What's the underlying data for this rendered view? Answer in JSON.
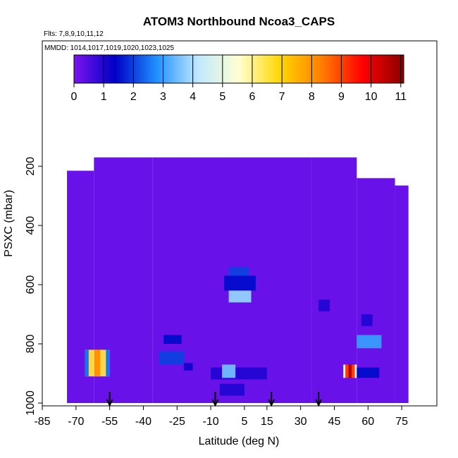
{
  "chart_data": {
    "type": "heatmap",
    "title": "ATOM3 Northbound Ncoa3_CAPS",
    "flights_note": "Flts: 7,8,9,10,11,12",
    "dates_note": "MMDD: 1014,1017,1019,1020,1023,1025",
    "xlabel": "Latitude (deg N)",
    "ylabel": "PSXC (mbar)",
    "xlim": [
      -85,
      85
    ],
    "ylim": [
      1000,
      0
    ],
    "x_ticks": [
      -85,
      -70,
      -55,
      -40,
      -25,
      -10,
      5,
      15,
      30,
      45,
      60,
      75
    ],
    "y_ticks": [
      200,
      400,
      600,
      800,
      1000
    ],
    "colorbar": {
      "ticks": [
        0,
        1,
        2,
        3,
        4,
        5,
        6,
        7,
        8,
        9,
        10,
        11
      ],
      "range": [
        0,
        11.1
      ],
      "colors": [
        "#7a14ee",
        "#0000c8",
        "#1e90ff",
        "#bfe8ff",
        "#ffffd0",
        "#ffd700",
        "#ff7f00",
        "#ff0000",
        "#8b0000"
      ]
    },
    "background_value": 0.2,
    "coverage": [
      {
        "lat": [
          -74,
          -62
        ],
        "p": [
          215,
          1000
        ]
      },
      {
        "lat": [
          -62,
          -36
        ],
        "p": [
          170,
          1000
        ]
      },
      {
        "lat": [
          -36,
          35
        ],
        "p": [
          170,
          1000
        ]
      },
      {
        "lat": [
          35,
          55
        ],
        "p": [
          170,
          1000
        ]
      },
      {
        "lat": [
          55,
          72
        ],
        "p": [
          240,
          1000
        ]
      },
      {
        "lat": [
          72,
          78
        ],
        "p": [
          265,
          1000
        ]
      }
    ],
    "features": [
      {
        "lat": [
          -66,
          -55
        ],
        "p": [
          820,
          910
        ],
        "value": 6.5,
        "peak": 8.0
      },
      {
        "lat": [
          -31,
          -23
        ],
        "p": [
          770,
          800
        ],
        "value": 1.5
      },
      {
        "lat": [
          -33,
          -22
        ],
        "p": [
          825,
          870
        ],
        "value": 2.0
      },
      {
        "lat": [
          -22,
          -18
        ],
        "p": [
          865,
          890
        ],
        "value": 1.2
      },
      {
        "lat": [
          -10,
          15
        ],
        "p": [
          880,
          920
        ],
        "value": 1.0
      },
      {
        "lat": [
          -6,
          5
        ],
        "p": [
          935,
          975
        ],
        "value": 1.0
      },
      {
        "lat": [
          -5,
          1
        ],
        "p": [
          870,
          915
        ],
        "value": 3.5
      },
      {
        "lat": [
          -2,
          7
        ],
        "p": [
          540,
          570
        ],
        "value": 2.0
      },
      {
        "lat": [
          -4,
          10
        ],
        "p": [
          570,
          620
        ],
        "value": 1.5
      },
      {
        "lat": [
          -2,
          8
        ],
        "p": [
          620,
          660
        ],
        "value": 3.8
      },
      {
        "lat": [
          38,
          43
        ],
        "p": [
          650,
          690
        ],
        "value": 1.0
      },
      {
        "lat": [
          55,
          66
        ],
        "p": [
          770,
          815
        ],
        "value": 3.0
      },
      {
        "lat": [
          49,
          55
        ],
        "p": [
          870,
          915
        ],
        "value": 9.0,
        "peak": 10.5
      },
      {
        "lat": [
          55,
          65
        ],
        "p": [
          880,
          915
        ],
        "value": 1.5
      },
      {
        "lat": [
          57,
          62
        ],
        "p": [
          700,
          740
        ],
        "value": 1.0
      }
    ],
    "flight_start_markers": [
      -55,
      -8,
      17,
      38
    ]
  }
}
